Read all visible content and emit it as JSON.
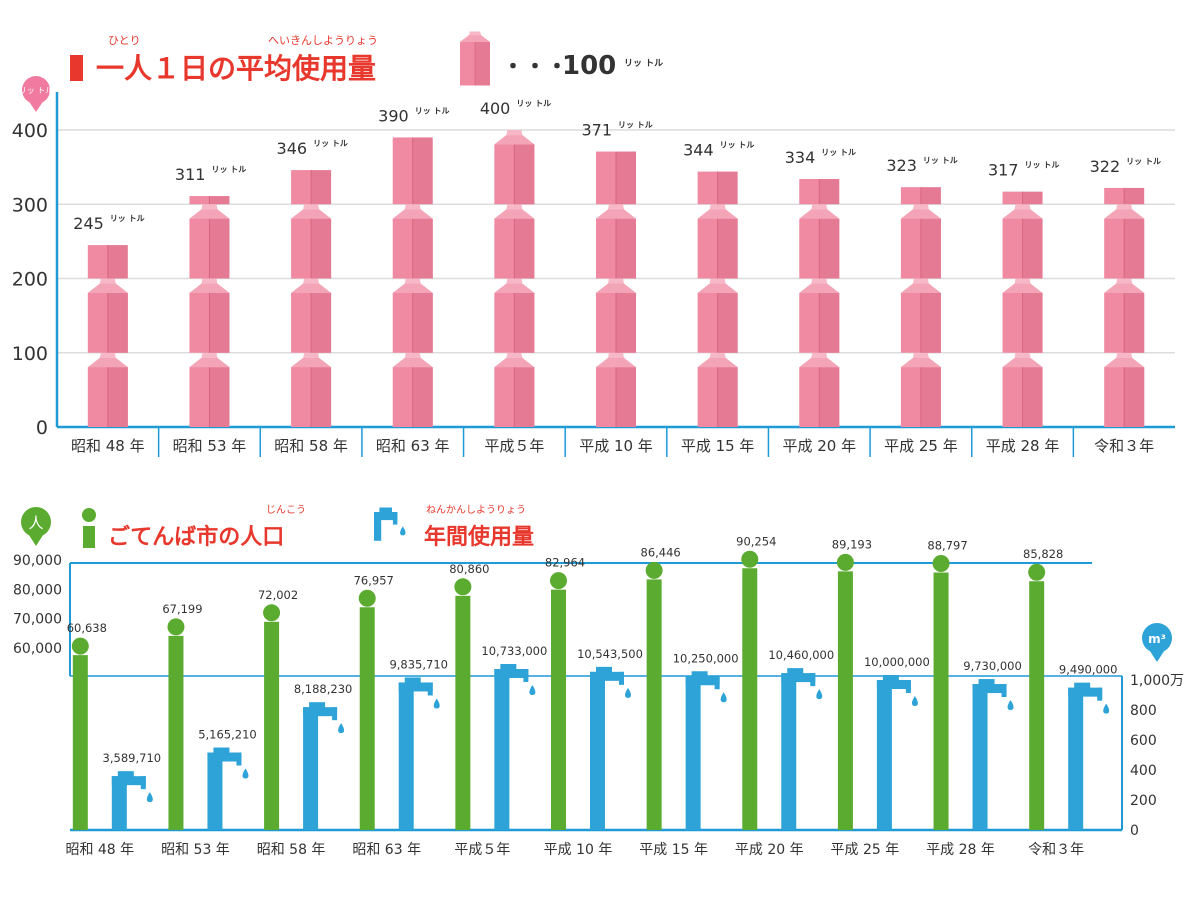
{
  "top": {
    "title": "一人１日の平均使用量",
    "furigana_hitori": "ひとり",
    "furigana_heikin": "へいきんしようりょう",
    "legend_dots": "・・・",
    "legend_value": "100",
    "unit_badge": "リッ トル",
    "unit_suffix": "リッ トル",
    "colors": {
      "carton": "#ef8aa2",
      "carton_dark": "#e0718d",
      "carton_top": "#f5a9bb",
      "axis": "#1e9ad7",
      "title": "#e8382d",
      "grid": "#d9d9d9"
    }
  },
  "bottom": {
    "title": "ごてんば市の人口",
    "furigana_jinkou": "じんこう",
    "title2": "年間使用量",
    "furigana_nenkan": "ねんかんしようりょう",
    "person_badge": "人",
    "m3_badge": "m³",
    "right_unit": "万",
    "colors": {
      "population": "#5aab2f",
      "water": "#2ea3d8",
      "axis": "#1e9ad7"
    }
  },
  "chart_data": [
    {
      "type": "bar",
      "title": "一人１日の平均使用量",
      "ylabel": "リットル",
      "ylim": [
        0,
        400
      ],
      "yticks": [
        0,
        100,
        200,
        300,
        400
      ],
      "grid": true,
      "categories": [
        "昭和 48 年",
        "昭和 53 年",
        "昭和 58 年",
        "昭和 63 年",
        "平成５年",
        "平成 10 年",
        "平成 15 年",
        "平成 20 年",
        "平成 25 年",
        "平成 28 年",
        "令和３年"
      ],
      "values": [
        245,
        311,
        346,
        390,
        400,
        371,
        344,
        334,
        323,
        317,
        322
      ]
    },
    {
      "type": "bar",
      "categories": [
        "昭和 48 年",
        "昭和 53 年",
        "昭和 58 年",
        "昭和 63 年",
        "平成５年",
        "平成 10 年",
        "平成 15 年",
        "平成 20 年",
        "平成 25 年",
        "平成 28 年",
        "令和３年"
      ],
      "series": [
        {
          "name": "ごてんば市の人口",
          "axis": "left",
          "unit": "人",
          "values": [
            60638,
            67199,
            72002,
            76957,
            80860,
            82964,
            86446,
            90254,
            89193,
            88797,
            85828
          ],
          "labels": [
            "60,638",
            "67,199",
            "72,002",
            "76,957",
            "80,860",
            "82,964",
            "86,446",
            "90,254",
            "89,193",
            "88,797",
            "85,828"
          ]
        },
        {
          "name": "年間使用量",
          "axis": "right",
          "unit": "m³",
          "values": [
            3589710,
            5165210,
            8188230,
            9835710,
            10733000,
            10543500,
            10250000,
            10460000,
            10000000,
            9730000,
            9490000
          ],
          "labels": [
            "3,589,710",
            "5,165,210",
            "8,188,230",
            "9,835,710",
            "10,733,000",
            "10,543,500",
            "10,250,000",
            "10,460,000",
            "10,000,000",
            "9,730,000",
            "9,490,000"
          ]
        }
      ],
      "left_ticks": [
        "60,000",
        "70,000",
        "80,000",
        "90,000"
      ],
      "right_ticks": [
        "0",
        "200",
        "400",
        "600",
        "800",
        "1,000"
      ],
      "right_tick_values": [
        0,
        200,
        400,
        600,
        800,
        1000
      ]
    }
  ]
}
